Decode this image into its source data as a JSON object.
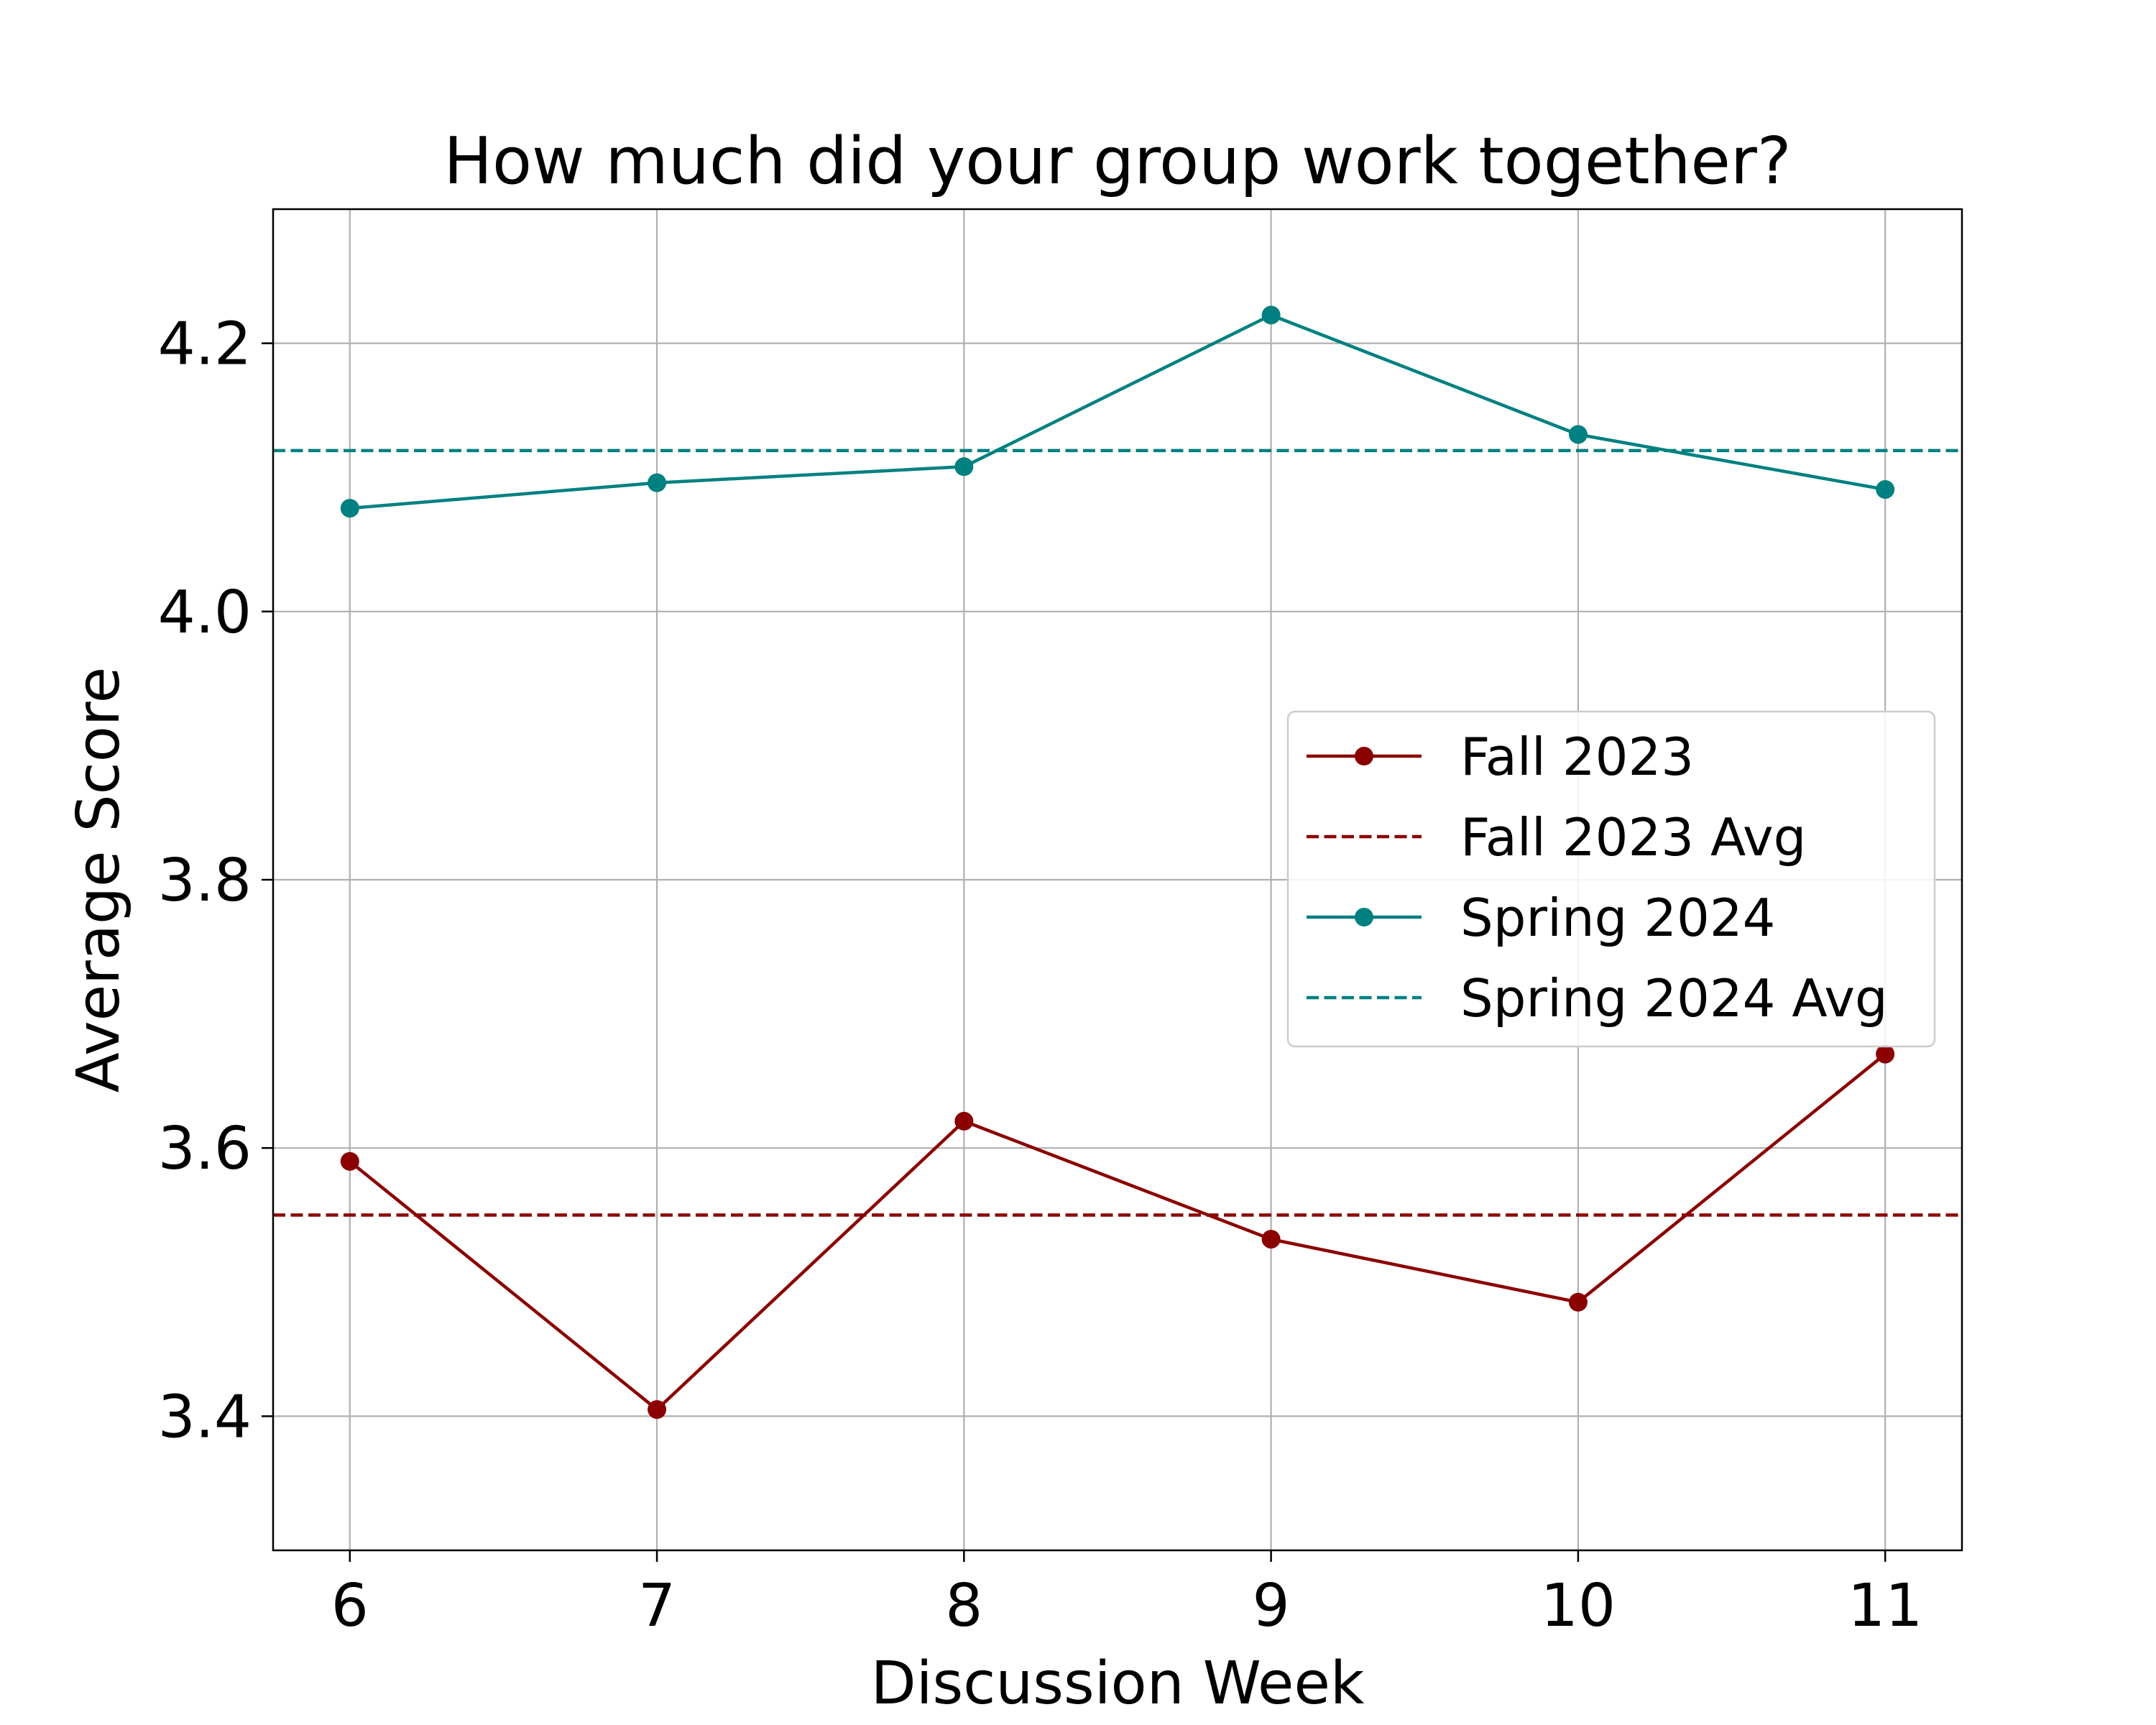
{
  "chart_data": {
    "type": "line",
    "title": "How much did your group work together?",
    "xlabel": "Discussion Week",
    "ylabel": "Average Score",
    "x": [
      6,
      7,
      8,
      9,
      10,
      11
    ],
    "xlim": [
      5.75,
      11.25
    ],
    "ylim": [
      3.3,
      4.3
    ],
    "xticks": [
      6,
      7,
      8,
      9,
      10,
      11
    ],
    "yticks": [
      3.4,
      3.6,
      3.8,
      4.0,
      4.2
    ],
    "ytick_labels": [
      "3.4",
      "3.6",
      "3.8",
      "4.0",
      "4.2"
    ],
    "grid": true,
    "legend_position": "center-right",
    "series": [
      {
        "name": "Fall 2023",
        "values": [
          3.59,
          3.405,
          3.62,
          3.532,
          3.485,
          3.67
        ],
        "color": "#8b0000",
        "style": "solid-with-markers"
      },
      {
        "name": "Spring 2024",
        "values": [
          4.077,
          4.096,
          4.108,
          4.221,
          4.132,
          4.091
        ],
        "color": "#008080",
        "style": "solid-with-markers"
      }
    ],
    "reference_lines": [
      {
        "name": "Fall 2023 Avg",
        "value": 3.55,
        "color": "#8b0000",
        "style": "dashed"
      },
      {
        "name": "Spring 2024 Avg",
        "value": 4.12,
        "color": "#008080",
        "style": "dashed"
      }
    ],
    "legend_order": [
      "Fall 2023",
      "Fall 2023 Avg",
      "Spring 2024",
      "Spring 2024 Avg"
    ]
  }
}
